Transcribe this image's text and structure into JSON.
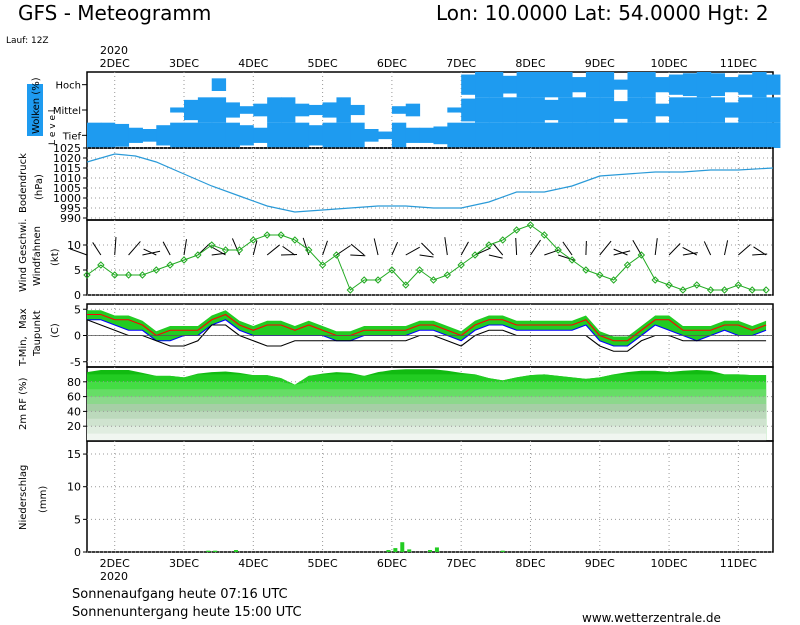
{
  "header": {
    "title": "GFS - Meteogramm",
    "location": "Lon: 10.0000 Lat: 54.0000 Hgt: 2",
    "run": "Lauf: 12Z"
  },
  "x_axis": {
    "year": "2020",
    "days": [
      "2DEC",
      "3DEC",
      "4DEC",
      "5DEC",
      "6DEC",
      "7DEC",
      "8DEC",
      "9DEC",
      "10DEC",
      "11DEC"
    ]
  },
  "panels": {
    "clouds": {
      "ylabel": "Wolken (%)",
      "levels_label": "L e v e l",
      "level_names": [
        "Hoch",
        "Mittel",
        "Tief"
      ]
    },
    "pressure": {
      "ylabel": "Bodendruck",
      "unit": "(hPa)"
    },
    "wind": {
      "ylabel_1": "Wind Geschwi.",
      "ylabel_2": "Windfahnen",
      "unit": "(kt)"
    },
    "temperature": {
      "ylabel_1": "T-Min,",
      "ylabel_2": "Max",
      "ylabel_3": "Taupunkt",
      "unit": "(C)"
    },
    "humidity": {
      "ylabel": "2m RF (%)"
    },
    "precip": {
      "ylabel": "Niederschlag",
      "unit": "(mm)"
    }
  },
  "footer": {
    "sunrise": "Sonnenaufgang heute 07:16 UTC",
    "sunset": "Sonnenuntergang heute 15:00 UTC",
    "source": "www.wetterzentrale.de"
  },
  "colors": {
    "cloud": "#1e9bf0",
    "pressure": "#2a9ad8",
    "wind": "#22aa22",
    "tmax": "#ff0000",
    "tmin": "#0000ff",
    "green": "#22cc22"
  },
  "chart_data": [
    {
      "type": "heatmap",
      "ylabel": "Wolken (%)",
      "rows": [
        "Hoch",
        "Mittel",
        "Tief"
      ],
      "x_days": [
        1.6,
        1.8,
        2.0,
        2.2,
        2.4,
        2.6,
        2.8,
        3.0,
        3.2,
        3.4,
        3.6,
        3.8,
        4.0,
        4.2,
        4.4,
        4.6,
        4.8,
        5.0,
        5.2,
        5.4,
        5.6,
        5.8,
        6.0,
        6.2,
        6.4,
        6.6,
        6.8,
        7.0,
        7.2,
        7.4,
        7.6,
        7.8,
        8.0,
        8.2,
        8.4,
        8.6,
        8.8,
        9.0,
        9.2,
        9.4,
        9.6,
        9.8,
        10.0,
        10.2,
        10.4,
        10.6,
        10.8,
        11.0,
        11.2,
        11.4
      ],
      "cover": [
        [
          0,
          0,
          0,
          0,
          0,
          0,
          0,
          0,
          0,
          0.5,
          0,
          0,
          0,
          0,
          0,
          0,
          0,
          0,
          0,
          0,
          0,
          0,
          0,
          0,
          0,
          0,
          0,
          0.8,
          1,
          1,
          0.7,
          1,
          1,
          1,
          1,
          0.6,
          1,
          1,
          0.4,
          1,
          1,
          0.6,
          0.8,
          0.9,
          1,
          0.9,
          0.6,
          0.8,
          1,
          0.8
        ],
        [
          0,
          0,
          0,
          0,
          0,
          0,
          0.2,
          0.8,
          1,
          1,
          0.6,
          0.3,
          0.5,
          1,
          1,
          0.5,
          0.4,
          0.6,
          1,
          0.4,
          0,
          0,
          0.3,
          0.5,
          0,
          0,
          0.2,
          0.9,
          1,
          1,
          1,
          1,
          1,
          0.8,
          1,
          1,
          1,
          1,
          0.7,
          1,
          1,
          0.5,
          1,
          1,
          1,
          1,
          0.6,
          1,
          1,
          1
        ],
        [
          1,
          1,
          0.9,
          0.6,
          0.5,
          0.8,
          1,
          1,
          1,
          1,
          1,
          0.8,
          0.6,
          1,
          1,
          1,
          0.8,
          1,
          1,
          1,
          0.5,
          0.3,
          1,
          0.6,
          0.6,
          0.7,
          1,
          1,
          1,
          1,
          1,
          1,
          1,
          1,
          1,
          1,
          1,
          1,
          1,
          1,
          1,
          1,
          1,
          1,
          1,
          1,
          1,
          1,
          1,
          1
        ]
      ]
    },
    {
      "type": "line",
      "ylabel": "Bodendruck (hPa)",
      "ylim": [
        989,
        1025
      ],
      "yticks": [
        990,
        995,
        1000,
        1005,
        1010,
        1015,
        1020,
        1025
      ],
      "x_days": [
        1.6,
        2.0,
        2.3,
        2.6,
        3.0,
        3.4,
        3.8,
        4.2,
        4.6,
        5.0,
        5.4,
        5.8,
        6.2,
        6.6,
        7.0,
        7.4,
        7.8,
        8.2,
        8.6,
        9.0,
        9.4,
        9.8,
        10.2,
        10.6,
        11.0,
        11.5
      ],
      "series": [
        {
          "values": [
            1018,
            1022,
            1021,
            1018,
            1012,
            1006,
            1001,
            996,
            993,
            994,
            995,
            996,
            996,
            995,
            995,
            998,
            1003,
            1003,
            1006,
            1011,
            1012,
            1013,
            1013,
            1014,
            1014,
            1015
          ]
        }
      ]
    },
    {
      "type": "line",
      "ylabel": "Wind Geschwi. (kt)",
      "ylim": [
        0,
        15
      ],
      "yticks": [
        0,
        5,
        10
      ],
      "x_days": [
        1.6,
        1.8,
        2.0,
        2.2,
        2.4,
        2.6,
        2.8,
        3.0,
        3.2,
        3.4,
        3.6,
        3.8,
        4.0,
        4.2,
        4.4,
        4.6,
        4.8,
        5.0,
        5.2,
        5.4,
        5.6,
        5.8,
        6.0,
        6.2,
        6.4,
        6.6,
        6.8,
        7.0,
        7.2,
        7.4,
        7.6,
        7.8,
        8.0,
        8.2,
        8.4,
        8.6,
        8.8,
        9.0,
        9.2,
        9.4,
        9.6,
        9.8,
        10.0,
        10.2,
        10.4,
        10.6,
        10.8,
        11.0,
        11.2,
        11.4
      ],
      "series": [
        {
          "name": "Wind Geschwi.",
          "values": [
            4,
            6,
            4,
            4,
            4,
            5,
            6,
            7,
            8,
            10,
            9,
            9,
            11,
            12,
            12,
            11,
            9,
            6,
            8,
            1,
            3,
            3,
            5,
            2,
            5,
            3,
            4,
            6,
            8,
            10,
            11,
            13,
            14,
            12,
            9,
            7,
            5,
            4,
            3,
            6,
            8,
            3,
            2,
            1,
            2,
            1,
            1,
            2,
            1,
            1
          ]
        }
      ]
    },
    {
      "type": "line",
      "ylabel": "T-Min, Max, Taupunkt (C)",
      "ylim": [
        -6,
        6
      ],
      "yticks": [
        -5,
        0,
        5
      ],
      "x_days": [
        1.6,
        1.8,
        2.0,
        2.2,
        2.4,
        2.6,
        2.8,
        3.0,
        3.2,
        3.4,
        3.6,
        3.8,
        4.0,
        4.2,
        4.4,
        4.6,
        4.8,
        5.0,
        5.2,
        5.4,
        5.6,
        5.8,
        6.0,
        6.2,
        6.4,
        6.6,
        6.8,
        7.0,
        7.2,
        7.4,
        7.6,
        7.8,
        8.0,
        8.2,
        8.4,
        8.6,
        8.8,
        9.0,
        9.2,
        9.4,
        9.6,
        9.8,
        10.0,
        10.2,
        10.4,
        10.6,
        10.8,
        11.0,
        11.2,
        11.4
      ],
      "series": [
        {
          "name": "Max",
          "values": [
            4,
            4,
            3,
            3,
            2,
            0,
            1,
            1,
            1,
            3,
            4,
            2,
            1,
            2,
            2,
            1,
            2,
            1,
            0,
            0,
            1,
            1,
            1,
            1,
            2,
            2,
            1,
            0,
            2,
            3,
            3,
            2,
            2,
            2,
            2,
            2,
            3,
            0,
            -1,
            -1,
            1,
            3,
            3,
            1,
            1,
            1,
            2,
            2,
            1,
            2
          ]
        },
        {
          "name": "T-Min",
          "values": [
            3,
            3,
            2,
            1,
            1,
            -1,
            -1,
            0,
            0,
            2,
            3,
            1,
            0,
            0,
            0,
            0,
            0,
            0,
            -1,
            -1,
            0,
            0,
            0,
            0,
            1,
            1,
            0,
            -1,
            1,
            2,
            2,
            1,
            1,
            1,
            1,
            1,
            2,
            -1,
            -2,
            -2,
            0,
            2,
            1,
            0,
            -1,
            0,
            1,
            0,
            0,
            1
          ]
        },
        {
          "name": "Taupunkt",
          "values": [
            3,
            2,
            1,
            0,
            0,
            -1,
            -2,
            -2,
            -1,
            2,
            2,
            0,
            -1,
            -2,
            -2,
            -1,
            -1,
            -1,
            -1,
            -1,
            -1,
            -1,
            -1,
            -1,
            0,
            0,
            -1,
            -2,
            0,
            1,
            1,
            0,
            0,
            0,
            0,
            0,
            0,
            -2,
            -3,
            -3,
            -1,
            0,
            0,
            -1,
            -1,
            -1,
            -1,
            -1,
            -1,
            -1
          ]
        }
      ]
    },
    {
      "type": "area",
      "ylabel": "2m RF (%)",
      "ylim": [
        0,
        100
      ],
      "yticks": [
        20,
        40,
        60,
        80
      ],
      "x_days": [
        1.6,
        1.8,
        2.0,
        2.2,
        2.4,
        2.6,
        2.8,
        3.0,
        3.2,
        3.4,
        3.6,
        3.8,
        4.0,
        4.2,
        4.4,
        4.6,
        4.8,
        5.0,
        5.2,
        5.4,
        5.6,
        5.8,
        6.0,
        6.2,
        6.4,
        6.6,
        6.8,
        7.0,
        7.2,
        7.4,
        7.6,
        7.8,
        8.0,
        8.2,
        8.4,
        8.6,
        8.8,
        9.0,
        9.2,
        9.4,
        9.6,
        9.8,
        10.0,
        10.2,
        10.4,
        10.6,
        10.8,
        11.0,
        11.2,
        11.4
      ],
      "series": [
        {
          "name": "2m RF (%)",
          "values": [
            93,
            96,
            96,
            96,
            92,
            88,
            88,
            86,
            91,
            93,
            94,
            92,
            89,
            89,
            85,
            76,
            88,
            91,
            93,
            92,
            88,
            93,
            96,
            97,
            97,
            97,
            95,
            92,
            90,
            85,
            82,
            86,
            89,
            90,
            88,
            86,
            84,
            86,
            90,
            93,
            95,
            95,
            93,
            95,
            96,
            95,
            90,
            90,
            89,
            89
          ]
        }
      ]
    },
    {
      "type": "bar",
      "ylabel": "Niederschlag (mm)",
      "ylim": [
        0,
        17
      ],
      "yticks": [
        0,
        5,
        10,
        15
      ],
      "x_days": [
        3.35,
        3.45,
        3.75,
        5.95,
        6.05,
        6.15,
        6.25,
        6.55,
        6.65,
        7.6
      ],
      "values": [
        0.2,
        0.2,
        0.3,
        0.3,
        0.6,
        1.5,
        0.4,
        0.3,
        0.7,
        0.2
      ]
    }
  ]
}
